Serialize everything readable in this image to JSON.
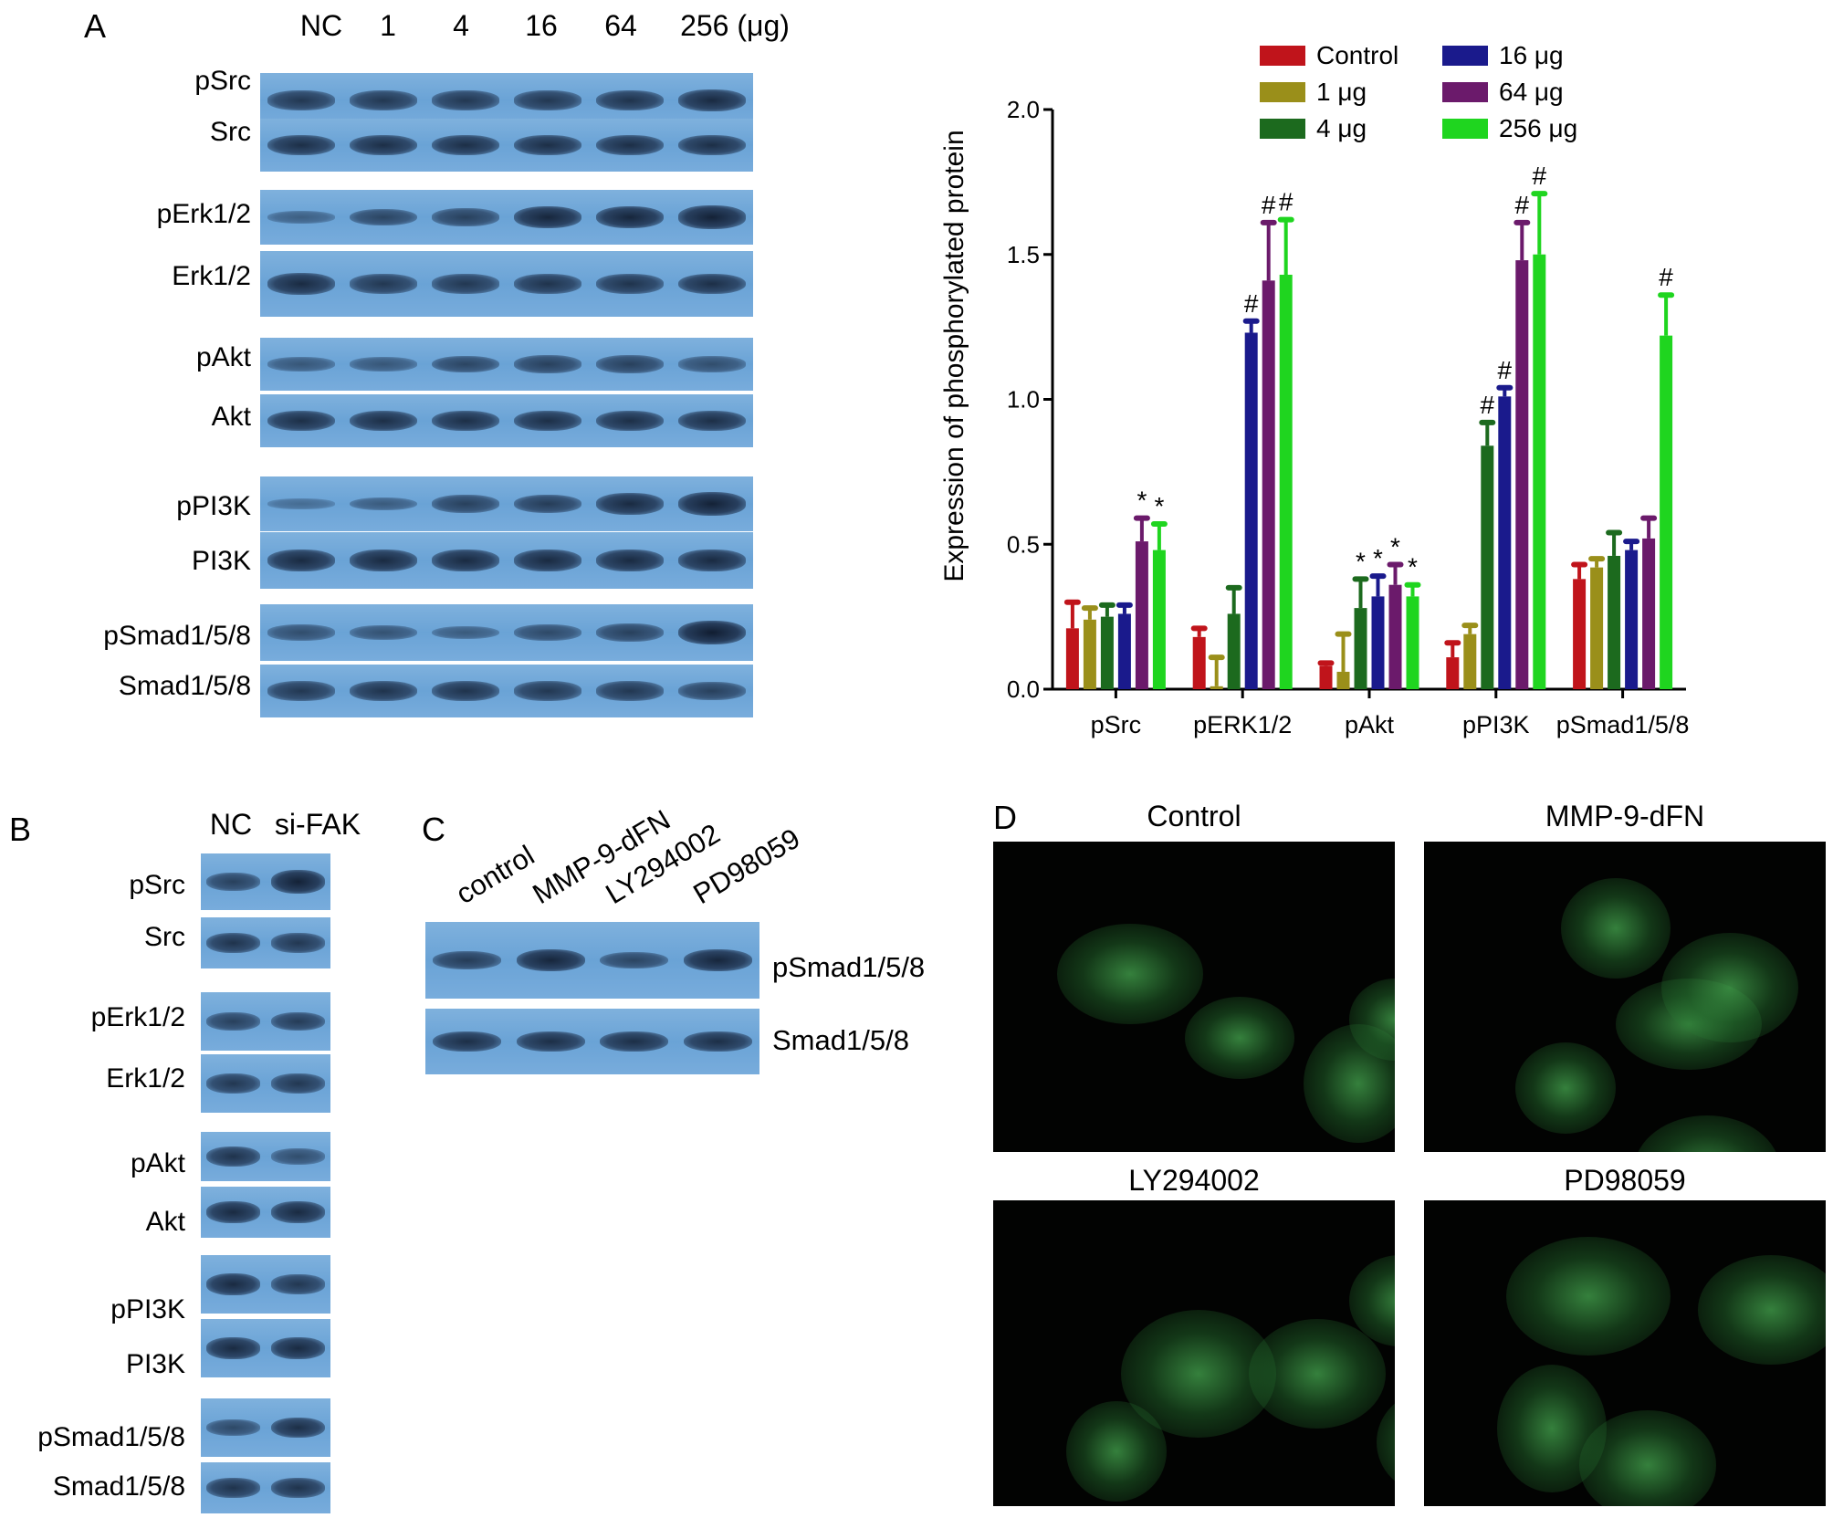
{
  "panel_a": {
    "letter": "A",
    "lanes": [
      "NC",
      "1",
      "4",
      "16",
      "64",
      "256 (μg)"
    ],
    "rows": [
      "pSrc",
      "Src",
      "pErk1/2",
      "Erk1/2",
      "pAkt",
      "Akt",
      "pPI3K",
      "PI3K",
      "pSmad1/5/8",
      "Smad1/5/8"
    ]
  },
  "panel_b": {
    "letter": "B",
    "lanes": [
      "NC",
      "si-FAK"
    ],
    "rows": [
      "pSrc",
      "Src",
      "pErk1/2",
      "Erk1/2",
      "pAkt",
      "Akt",
      "pPI3K",
      "PI3K",
      "pSmad1/5/8",
      "Smad1/5/8"
    ]
  },
  "panel_c": {
    "letter": "C",
    "lanes": [
      "control",
      "MMP-9-dFN",
      "LY294002",
      "PD98059"
    ],
    "rows": [
      "pSmad1/5/8",
      "Smad1/5/8"
    ]
  },
  "panel_d": {
    "letter": "D",
    "titles": [
      "Control",
      "MMP-9-dFN",
      "LY294002",
      "PD98059"
    ]
  },
  "chart_data": {
    "type": "bar",
    "title": "",
    "xlabel": "",
    "ylabel": "Expression of phosphorylated protein",
    "ylim": [
      0,
      2.0
    ],
    "yticks": [
      "0.0",
      "0.5",
      "1.0",
      "1.5",
      "2.0"
    ],
    "grid": false,
    "legend_position": "top",
    "categories": [
      "pSrc",
      "pERK1/2",
      "pAkt",
      "pPI3K",
      "pSmad1/5/8"
    ],
    "series": [
      {
        "name": "Control",
        "color": "#c0141b",
        "values": [
          0.21,
          0.18,
          0.08,
          0.11,
          0.38
        ],
        "errors": [
          0.09,
          0.03,
          0.01,
          0.05,
          0.05
        ]
      },
      {
        "name": "1 μg",
        "color": "#9a8f1a",
        "values": [
          0.24,
          0.01,
          0.06,
          0.19,
          0.42
        ],
        "errors": [
          0.04,
          0.1,
          0.13,
          0.03,
          0.03
        ]
      },
      {
        "name": "4 μg",
        "color": "#1c6a1e",
        "values": [
          0.25,
          0.26,
          0.28,
          0.84,
          0.46
        ],
        "errors": [
          0.04,
          0.09,
          0.1,
          0.08,
          0.08
        ]
      },
      {
        "name": "16 μg",
        "color": "#1a1a8c",
        "values": [
          0.26,
          1.23,
          0.32,
          1.01,
          0.48
        ],
        "errors": [
          0.03,
          0.04,
          0.07,
          0.03,
          0.03
        ]
      },
      {
        "name": "64 μg",
        "color": "#6b1a6b",
        "values": [
          0.51,
          1.41,
          0.36,
          1.48,
          0.52
        ],
        "errors": [
          0.08,
          0.2,
          0.07,
          0.13,
          0.07
        ]
      },
      {
        "name": "256 μg",
        "color": "#1fd51f",
        "values": [
          0.48,
          1.43,
          0.32,
          1.5,
          1.22
        ],
        "errors": [
          0.09,
          0.19,
          0.04,
          0.21,
          0.14
        ]
      }
    ],
    "annotations": [
      {
        "category": "pSrc",
        "series": "64 μg",
        "text": "*"
      },
      {
        "category": "pSrc",
        "series": "256 μg",
        "text": "*"
      },
      {
        "category": "pERK1/2",
        "series": "16 μg",
        "text": "#"
      },
      {
        "category": "pERK1/2",
        "series": "64 μg",
        "text": "#"
      },
      {
        "category": "pERK1/2",
        "series": "256 μg",
        "text": "#"
      },
      {
        "category": "pAkt",
        "series": "4 μg",
        "text": "*"
      },
      {
        "category": "pAkt",
        "series": "16 μg",
        "text": "*"
      },
      {
        "category": "pAkt",
        "series": "64 μg",
        "text": "*"
      },
      {
        "category": "pAkt",
        "series": "256 μg",
        "text": "*"
      },
      {
        "category": "pPI3K",
        "series": "4 μg",
        "text": "#"
      },
      {
        "category": "pPI3K",
        "series": "16 μg",
        "text": "#"
      },
      {
        "category": "pPI3K",
        "series": "64 μg",
        "text": "#"
      },
      {
        "category": "pPI3K",
        "series": "256 μg",
        "text": "#"
      },
      {
        "category": "pSmad1/5/8",
        "series": "256 μg",
        "text": "#"
      }
    ]
  }
}
